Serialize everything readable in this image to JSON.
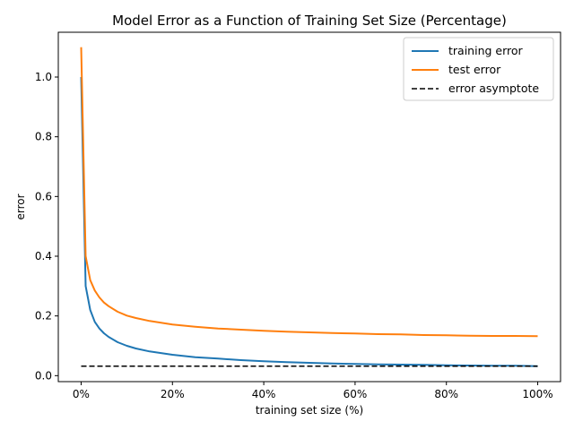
{
  "chart_data": {
    "type": "line",
    "title": "Model Error as a Function of Training Set Size (Percentage)",
    "xlabel": "training set size (%)",
    "ylabel": "error",
    "xlim": [
      -0.05,
      1.05
    ],
    "ylim": [
      -0.02,
      1.15
    ],
    "x_ticks": [
      0,
      0.2,
      0.4,
      0.6,
      0.8,
      1.0
    ],
    "x_tick_labels": [
      "0%",
      "20%",
      "40%",
      "60%",
      "80%",
      "100%"
    ],
    "y_ticks": [
      0.0,
      0.2,
      0.4,
      0.6,
      0.8,
      1.0
    ],
    "y_tick_labels": [
      "0.0",
      "0.2",
      "0.4",
      "0.6",
      "0.8",
      "1.0"
    ],
    "grid": false,
    "legend_position": "top-right",
    "series": [
      {
        "name": "training error",
        "color": "#1f77b4",
        "style": "solid",
        "x": [
          0,
          0.01,
          0.02,
          0.03,
          0.04,
          0.05,
          0.06,
          0.08,
          0.1,
          0.12,
          0.15,
          0.2,
          0.25,
          0.3,
          0.35,
          0.4,
          0.45,
          0.5,
          0.55,
          0.6,
          0.65,
          0.7,
          0.75,
          0.8,
          0.85,
          0.9,
          0.95,
          1.0
        ],
        "y": [
          1.0,
          0.3,
          0.22,
          0.18,
          0.158,
          0.142,
          0.13,
          0.112,
          0.1,
          0.091,
          0.081,
          0.07,
          0.062,
          0.057,
          0.052,
          0.048,
          0.045,
          0.043,
          0.041,
          0.039,
          0.038,
          0.037,
          0.036,
          0.035,
          0.034,
          0.033,
          0.033,
          0.032
        ]
      },
      {
        "name": "test error",
        "color": "#ff7f0e",
        "style": "solid",
        "x": [
          0,
          0.01,
          0.02,
          0.03,
          0.04,
          0.05,
          0.06,
          0.08,
          0.1,
          0.12,
          0.15,
          0.2,
          0.25,
          0.3,
          0.35,
          0.4,
          0.45,
          0.5,
          0.55,
          0.6,
          0.65,
          0.7,
          0.75,
          0.8,
          0.85,
          0.9,
          0.95,
          1.0
        ],
        "y": [
          1.1,
          0.4,
          0.32,
          0.285,
          0.262,
          0.245,
          0.233,
          0.214,
          0.201,
          0.193,
          0.183,
          0.171,
          0.164,
          0.158,
          0.154,
          0.15,
          0.147,
          0.145,
          0.143,
          0.141,
          0.139,
          0.138,
          0.136,
          0.135,
          0.134,
          0.133,
          0.133,
          0.132
        ]
      },
      {
        "name": "error asymptote",
        "color": "#000000",
        "style": "dashed",
        "x": [
          0,
          1.0
        ],
        "y": [
          0.032,
          0.032
        ]
      }
    ]
  }
}
